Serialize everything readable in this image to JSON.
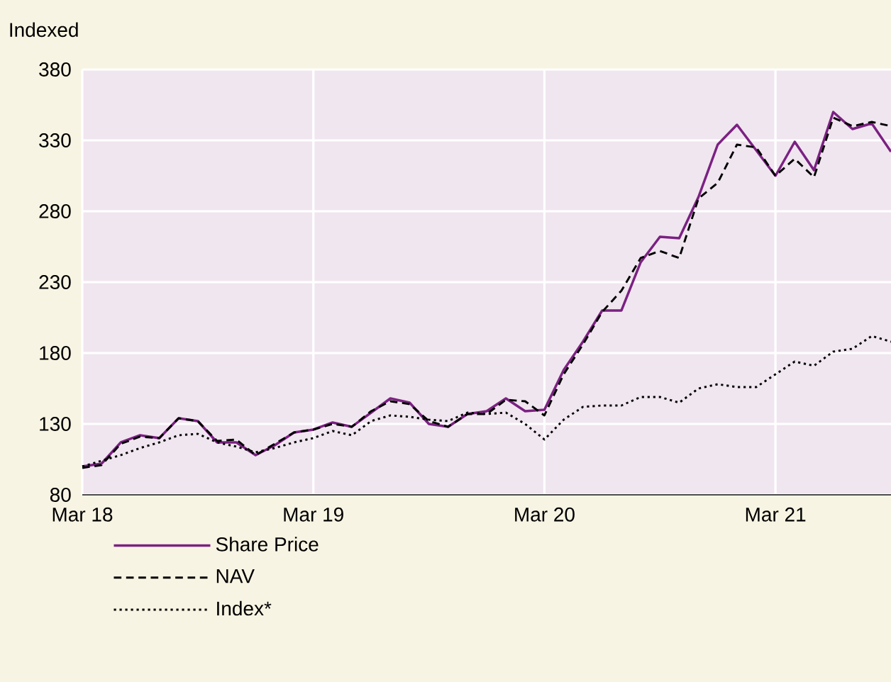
{
  "chart_data": {
    "type": "line",
    "ylabel": "Indexed",
    "x": [
      "2018-03",
      "2018-04",
      "2018-05",
      "2018-06",
      "2018-07",
      "2018-08",
      "2018-09",
      "2018-10",
      "2018-11",
      "2018-12",
      "2019-01",
      "2019-02",
      "2019-03",
      "2019-04",
      "2019-05",
      "2019-06",
      "2019-07",
      "2019-08",
      "2019-09",
      "2019-10",
      "2019-11",
      "2019-12",
      "2020-01",
      "2020-02",
      "2020-03",
      "2020-04",
      "2020-05",
      "2020-06",
      "2020-07",
      "2020-08",
      "2020-09",
      "2020-10",
      "2020-11",
      "2020-12",
      "2021-01",
      "2021-02",
      "2021-03",
      "2021-04",
      "2021-05",
      "2021-06",
      "2021-07",
      "2021-08",
      "2021-09"
    ],
    "series": [
      {
        "name": "Share Price",
        "color": "#7b2182",
        "line_style": "solid",
        "values": [
          100,
          102,
          117,
          122,
          120,
          134,
          132,
          117,
          117,
          108,
          115,
          124,
          126,
          131,
          128,
          138,
          148,
          145,
          130,
          128,
          137,
          139,
          148,
          139,
          140,
          168,
          188,
          210,
          210,
          244,
          262,
          261,
          290,
          327,
          341,
          323,
          305,
          329,
          309,
          350,
          338,
          342,
          322
        ]
      },
      {
        "name": "NAV",
        "color": "#000000",
        "line_style": "dashed",
        "values": [
          99,
          101,
          116,
          121,
          120,
          134,
          132,
          118,
          119,
          108,
          116,
          124,
          126,
          130,
          128,
          139,
          146,
          144,
          132,
          128,
          137,
          137,
          147,
          146,
          136,
          165,
          186,
          209,
          224,
          247,
          252,
          247,
          289,
          300,
          327,
          325,
          305,
          317,
          304,
          346,
          340,
          343,
          340
        ]
      },
      {
        "name": "Index*",
        "color": "#000000",
        "line_style": "dotted",
        "values": [
          100,
          104,
          108,
          113,
          117,
          122,
          123,
          117,
          114,
          110,
          113,
          117,
          120,
          125,
          122,
          132,
          136,
          135,
          133,
          132,
          138,
          137,
          138,
          130,
          119,
          133,
          142,
          143,
          143,
          149,
          149,
          145,
          155,
          158,
          156,
          156,
          165,
          174,
          171,
          181,
          183,
          192,
          188
        ]
      }
    ],
    "xlim": [
      "2018-03",
      "2021-09"
    ],
    "xticks": [
      {
        "value": "2018-03",
        "label": "Mar 18"
      },
      {
        "value": "2019-03",
        "label": "Mar 19"
      },
      {
        "value": "2020-03",
        "label": "Mar 20"
      },
      {
        "value": "2021-03",
        "label": "Mar 21"
      }
    ],
    "ylim": [
      80,
      380
    ],
    "yticks": [
      80,
      130,
      180,
      230,
      280,
      330,
      380
    ],
    "grid": true,
    "legend": "bottom"
  }
}
